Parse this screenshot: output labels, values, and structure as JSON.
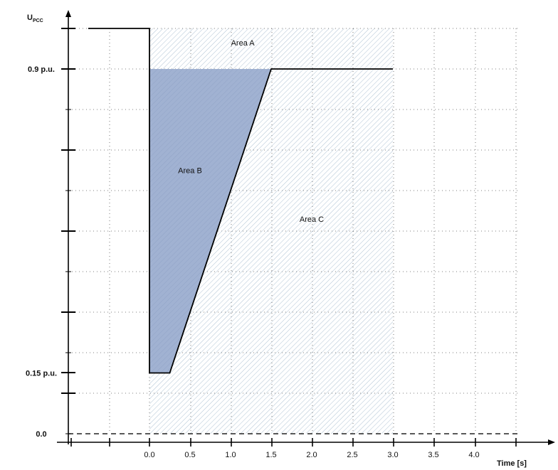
{
  "chart_data": {
    "type": "line",
    "title": "",
    "ylabel": "U",
    "ylabel_sub": "PCC",
    "xlabel": "Time  [s]",
    "x_tick_labels": [
      "0.0",
      "0.5",
      "1.0",
      "1.5",
      "2.0",
      "2.5",
      "3.0",
      "3.5",
      "4.0"
    ],
    "x_ticks": [
      0,
      0.5,
      1.0,
      1.5,
      2.0,
      2.5,
      3.0,
      3.5,
      4.0
    ],
    "xlim": [
      -1.0,
      5.0
    ],
    "ylim": [
      0,
      1.0
    ],
    "y_tick_labels": [
      {
        "label": "0.9 p.u.",
        "value": 0.9
      },
      {
        "label": "0.15 p.u.",
        "value": 0.15
      },
      {
        "label": "0.0",
        "value": 0.0
      }
    ],
    "grid": true,
    "boundary_line": {
      "x": [
        -0.75,
        0.0,
        0.0,
        0.25,
        1.5,
        3.0
      ],
      "y": [
        1.0,
        1.0,
        0.15,
        0.15,
        0.9,
        0.9
      ]
    },
    "zero_line": {
      "style": "dashed",
      "y": 0.0
    },
    "areas": [
      {
        "name": "Area A",
        "label": "Area A",
        "fill": "hatch",
        "color": "#9fb4cc",
        "label_x": 1.15,
        "label_y": 0.965
      },
      {
        "name": "Area B",
        "label": "Area B",
        "fill": "solid",
        "color": "#9fb1d0",
        "label_x": 0.5,
        "label_y": 0.65
      },
      {
        "name": "Area C",
        "label": "Area C",
        "fill": "hatch",
        "color": "#9fb4cc",
        "label_x": 2.0,
        "label_y": 0.53
      }
    ]
  }
}
